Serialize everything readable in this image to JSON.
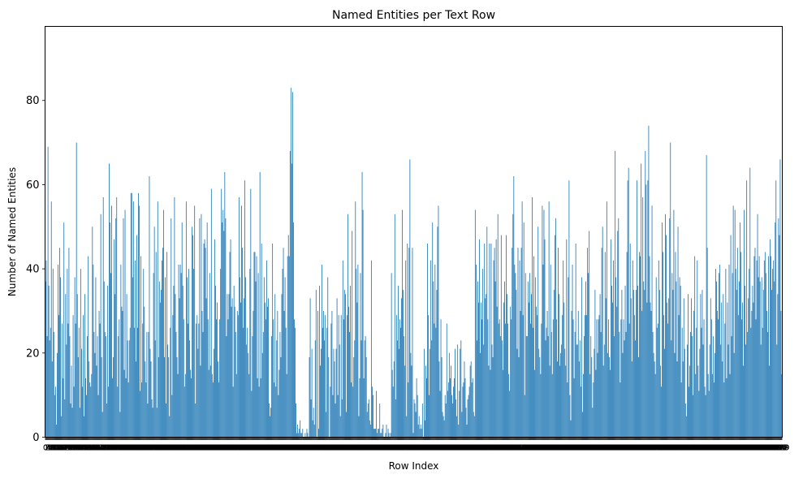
{
  "chart_data": {
    "type": "bar",
    "title": "Named Entities per Text Row",
    "xlabel": "Row Index",
    "ylabel": "Number of Named Entities",
    "ylim": [
      0,
      97.6
    ],
    "yticks": [
      0,
      20,
      40,
      60,
      80
    ],
    "grid": false,
    "legend": "none",
    "bar_color": "#1f77b4",
    "n_rows": 860,
    "series": [
      {
        "values": [
          37,
          42,
          24,
          69,
          36,
          23,
          26,
          56,
          18,
          40,
          25,
          10,
          12,
          3,
          20,
          41,
          29,
          45,
          38,
          5,
          27,
          14,
          51,
          9,
          34,
          22,
          40,
          27,
          45,
          24,
          8,
          17,
          7,
          29,
          12,
          38,
          27,
          70,
          34,
          19,
          26,
          7,
          40,
          21,
          12,
          29,
          5,
          34,
          14,
          10,
          24,
          43,
          18,
          13,
          12,
          15,
          50,
          41,
          25,
          20,
          38,
          17,
          24,
          10,
          30,
          27,
          53,
          19,
          6,
          57,
          37,
          25,
          24,
          8,
          36,
          12,
          65,
          51,
          39,
          55,
          14,
          19,
          47,
          34,
          52,
          57,
          12,
          24,
          28,
          6,
          41,
          31,
          30,
          52,
          16,
          54,
          14,
          34,
          23,
          13,
          23,
          26,
          58,
          58,
          38,
          56,
          26,
          42,
          18,
          48,
          26,
          58,
          55,
          11,
          43,
          13,
          27,
          40,
          31,
          18,
          13,
          25,
          8,
          25,
          62,
          21,
          18,
          9,
          7,
          39,
          50,
          23,
          44,
          7,
          56,
          19,
          37,
          32,
          35,
          42,
          45,
          54,
          19,
          38,
          8,
          44,
          22,
          19,
          5,
          26,
          52,
          10,
          29,
          36,
          57,
          34,
          25,
          19,
          15,
          41,
          33,
          41,
          39,
          51,
          36,
          28,
          12,
          15,
          56,
          38,
          27,
          40,
          23,
          16,
          14,
          50,
          48,
          40,
          55,
          8,
          27,
          29,
          21,
          27,
          52,
          17,
          53,
          30,
          25,
          46,
          47,
          45,
          33,
          51,
          28,
          16,
          39,
          17,
          59,
          15,
          13,
          21,
          47,
          36,
          28,
          32,
          18,
          13,
          28,
          40,
          59,
          51,
          54,
          49,
          63,
          52,
          24,
          34,
          28,
          34,
          44,
          47,
          31,
          33,
          12,
          36,
          31,
          25,
          15,
          30,
          29,
          57,
          38,
          32,
          55,
          45,
          26,
          33,
          61,
          38,
          22,
          26,
          20,
          15,
          40,
          59,
          11,
          24,
          30,
          44,
          44,
          37,
          43,
          14,
          39,
          12,
          63,
          14,
          46,
          20,
          25,
          38,
          32,
          28,
          42,
          31,
          33,
          8,
          5,
          7,
          24,
          46,
          28,
          13,
          34,
          12,
          23,
          30,
          10,
          16,
          25,
          19,
          34,
          40,
          45,
          30,
          38,
          26,
          15,
          43,
          48,
          43,
          68,
          83,
          65,
          82,
          51,
          28,
          26,
          8,
          1,
          3,
          1,
          2,
          4,
          1,
          1,
          2,
          0,
          0,
          1,
          0,
          2,
          1,
          0,
          19,
          33,
          9,
          21,
          4,
          7,
          3,
          23,
          35,
          0,
          30,
          2,
          36,
          17,
          21,
          41,
          26,
          30,
          23,
          29,
          6,
          26,
          38,
          19,
          0,
          12,
          27,
          30,
          10,
          21,
          18,
          8,
          21,
          33,
          10,
          29,
          22,
          5,
          29,
          9,
          42,
          28,
          35,
          34,
          6,
          29,
          53,
          31,
          25,
          36,
          13,
          49,
          12,
          19,
          23,
          56,
          40,
          32,
          41,
          5,
          14,
          39,
          23,
          63,
          54,
          14,
          23,
          24,
          19,
          6,
          8,
          9,
          4,
          3,
          42,
          12,
          10,
          2,
          2,
          2,
          11,
          1,
          2,
          2,
          8,
          1,
          1,
          2,
          3,
          0,
          0,
          1,
          3,
          0,
          2,
          1,
          0,
          1,
          39,
          16,
          12,
          18,
          53,
          9,
          29,
          23,
          36,
          21,
          28,
          26,
          33,
          54,
          35,
          24,
          17,
          42,
          5,
          46,
          13,
          45,
          66,
          20,
          17,
          45,
          1,
          9,
          8,
          6,
          14,
          10,
          3,
          5,
          2,
          3,
          2,
          8,
          0,
          21,
          4,
          17,
          14,
          46,
          29,
          10,
          21,
          42,
          23,
          51,
          37,
          27,
          41,
          26,
          35,
          50,
          55,
          18,
          11,
          28,
          19,
          6,
          5,
          4,
          10,
          8,
          27,
          11,
          13,
          20,
          14,
          17,
          10,
          8,
          12,
          14,
          21,
          9,
          5,
          22,
          3,
          11,
          21,
          23,
          6,
          12,
          13,
          18,
          14,
          7,
          3,
          9,
          10,
          12,
          17,
          18,
          13,
          14,
          6,
          5,
          54,
          41,
          23,
          37,
          32,
          47,
          20,
          32,
          28,
          40,
          22,
          46,
          33,
          34,
          50,
          28,
          17,
          46,
          16,
          46,
          22,
          19,
          42,
          45,
          37,
          47,
          31,
          53,
          27,
          28,
          24,
          48,
          23,
          16,
          32,
          37,
          27,
          48,
          34,
          27,
          15,
          11,
          31,
          28,
          45,
          53,
          62,
          41,
          39,
          35,
          21,
          45,
          19,
          42,
          30,
          45,
          56,
          29,
          51,
          10,
          39,
          24,
          24,
          37,
          32,
          39,
          27,
          34,
          57,
          26,
          43,
          16,
          38,
          31,
          29,
          50,
          21,
          19,
          15,
          27,
          55,
          41,
          54,
          47,
          23,
          26,
          30,
          24,
          56,
          17,
          41,
          25,
          15,
          28,
          35,
          48,
          52,
          28,
          18,
          45,
          34,
          17,
          20,
          22,
          29,
          42,
          32,
          21,
          17,
          47,
          13,
          38,
          61,
          10,
          4,
          30,
          41,
          28,
          14,
          25,
          46,
          22,
          22,
          30,
          18,
          23,
          12,
          38,
          6,
          15,
          24,
          29,
          37,
          29,
          45,
          39,
          49,
          15,
          24,
          19,
          7,
          13,
          21,
          35,
          16,
          28,
          20,
          28,
          29,
          34,
          25,
          45,
          50,
          17,
          22,
          44,
          33,
          56,
          20,
          28,
          19,
          16,
          47,
          36,
          32,
          42,
          24,
          68,
          38,
          31,
          49,
          52,
          25,
          13,
          28,
          35,
          20,
          28,
          23,
          36,
          25,
          44,
          61,
          64,
          27,
          46,
          33,
          18,
          42,
          35,
          29,
          23,
          35,
          61,
          36,
          19,
          44,
          43,
          65,
          30,
          57,
          37,
          35,
          68,
          60,
          32,
          61,
          74,
          43,
          32,
          30,
          55,
          25,
          20,
          18,
          15,
          38,
          26,
          27,
          42,
          35,
          17,
          12,
          51,
          44,
          29,
          21,
          53,
          48,
          32,
          27,
          33,
          52,
          70,
          23,
          39,
          35,
          54,
          20,
          44,
          37,
          18,
          50,
          29,
          38,
          36,
          13,
          26,
          18,
          33,
          21,
          8,
          5,
          22,
          34,
          12,
          17,
          25,
          33,
          24,
          10,
          30,
          43,
          15,
          26,
          42,
          17,
          11,
          21,
          34,
          26,
          35,
          22,
          28,
          12,
          10,
          67,
          45,
          15,
          11,
          22,
          33,
          28,
          15,
          24,
          13,
          20,
          40,
          37,
          30,
          28,
          39,
          41,
          22,
          32,
          18,
          34,
          13,
          27,
          40,
          14,
          32,
          22,
          41,
          15,
          48,
          24,
          39,
          55,
          20,
          54,
          40,
          35,
          45,
          29,
          37,
          51,
          44,
          28,
          32,
          17,
          54,
          36,
          22,
          61,
          25,
          33,
          40,
          64,
          26,
          30,
          36,
          32,
          43,
          45,
          28,
          42,
          53,
          38,
          43,
          37,
          22,
          38,
          26,
          35,
          42,
          44,
          39,
          30,
          25,
          43,
          17,
          47,
          43,
          35,
          40,
          42,
          37,
          51,
          61,
          22,
          34,
          52,
          48,
          66,
          30,
          15
        ]
      }
    ]
  }
}
